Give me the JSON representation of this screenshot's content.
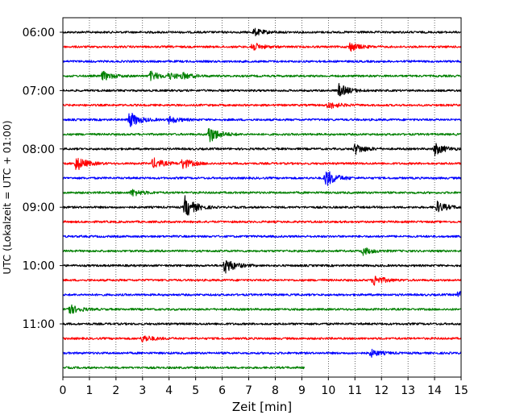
{
  "chart_data": {
    "type": "line",
    "title": "",
    "xlabel": "Zeit  [min]",
    "ylabel": "UTC (Lokalzeit = UTC + 01:00)",
    "xlim": [
      0,
      15
    ],
    "x_ticks": [
      0,
      1,
      2,
      3,
      4,
      5,
      6,
      7,
      8,
      9,
      10,
      11,
      12,
      13,
      14,
      15
    ],
    "y_ticks": [
      "06:00",
      "07:00",
      "08:00",
      "09:00",
      "10:00",
      "11:00"
    ],
    "trace_interval_min": 15,
    "grid": "vertical-dotted",
    "color_cycle": [
      "#000000",
      "#ff0000",
      "#0000ff",
      "#008000"
    ],
    "series": [
      {
        "start": "06:00",
        "end_min": 15,
        "events": [
          {
            "t": 7.2,
            "amp": 0.4
          }
        ]
      },
      {
        "start": "06:15",
        "end_min": 15,
        "events": [
          {
            "t": 7.1,
            "amp": 0.5
          },
          {
            "t": 10.8,
            "amp": 0.5
          }
        ]
      },
      {
        "start": "06:30",
        "end_min": 15,
        "events": []
      },
      {
        "start": "06:45",
        "end_min": 15,
        "events": [
          {
            "t": 1.5,
            "amp": 0.5
          },
          {
            "t": 3.3,
            "amp": 0.5
          },
          {
            "t": 4.0,
            "amp": 0.3
          },
          {
            "t": 4.5,
            "amp": 0.3
          }
        ]
      },
      {
        "start": "07:00",
        "end_min": 15,
        "events": [
          {
            "t": 10.4,
            "amp": 0.7
          }
        ]
      },
      {
        "start": "07:15",
        "end_min": 15,
        "events": [
          {
            "t": 10.0,
            "amp": 0.4
          }
        ]
      },
      {
        "start": "07:30",
        "end_min": 15,
        "events": [
          {
            "t": 2.5,
            "amp": 0.9
          },
          {
            "t": 4.0,
            "amp": 0.4
          }
        ]
      },
      {
        "start": "07:45",
        "end_min": 15,
        "events": [
          {
            "t": 5.5,
            "amp": 1.0
          }
        ]
      },
      {
        "start": "08:00",
        "end_min": 15,
        "events": [
          {
            "t": 11.0,
            "amp": 0.6
          },
          {
            "t": 14.0,
            "amp": 0.7
          }
        ]
      },
      {
        "start": "08:15",
        "end_min": 15,
        "events": [
          {
            "t": 0.5,
            "amp": 0.8
          },
          {
            "t": 3.4,
            "amp": 0.6
          },
          {
            "t": 4.5,
            "amp": 0.6
          }
        ]
      },
      {
        "start": "08:30",
        "end_min": 15,
        "events": [
          {
            "t": 9.9,
            "amp": 1.0
          }
        ]
      },
      {
        "start": "08:45",
        "end_min": 15,
        "events": [
          {
            "t": 2.6,
            "amp": 0.4
          }
        ]
      },
      {
        "start": "09:00",
        "end_min": 15,
        "events": [
          {
            "t": 4.6,
            "amp": 1.2
          },
          {
            "t": 14.1,
            "amp": 0.6
          }
        ]
      },
      {
        "start": "09:15",
        "end_min": 15,
        "events": []
      },
      {
        "start": "09:30",
        "end_min": 15,
        "events": []
      },
      {
        "start": "09:45",
        "end_min": 15,
        "events": [
          {
            "t": 11.3,
            "amp": 0.4
          }
        ]
      },
      {
        "start": "10:00",
        "end_min": 15,
        "events": [
          {
            "t": 6.1,
            "amp": 0.9
          }
        ]
      },
      {
        "start": "10:15",
        "end_min": 15,
        "events": [
          {
            "t": 11.7,
            "amp": 0.6
          }
        ]
      },
      {
        "start": "10:30",
        "end_min": 15,
        "events": [
          {
            "t": 14.9,
            "amp": 0.4
          }
        ]
      },
      {
        "start": "10:45",
        "end_min": 15,
        "events": [
          {
            "t": 0.2,
            "amp": 0.6
          }
        ]
      },
      {
        "start": "11:00",
        "end_min": 15,
        "events": []
      },
      {
        "start": "11:15",
        "end_min": 15,
        "events": [
          {
            "t": 3.0,
            "amp": 0.4
          }
        ]
      },
      {
        "start": "11:30",
        "end_min": 15,
        "events": [
          {
            "t": 11.6,
            "amp": 0.4
          }
        ]
      },
      {
        "start": "11:45",
        "end_min": 9.1,
        "events": []
      }
    ]
  }
}
